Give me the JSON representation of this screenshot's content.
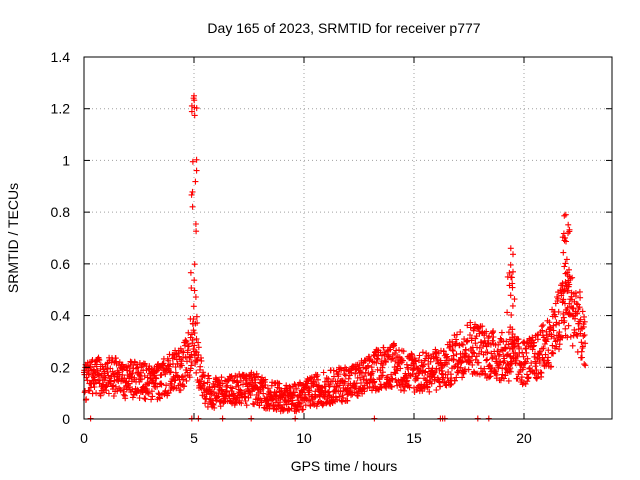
{
  "chart_data": {
    "type": "scatter",
    "title": "Day 165 of 2023, SRMTID for receiver p777",
    "xlabel": "GPS time / hours",
    "ylabel": "SRMTID / TECUs",
    "xlim": [
      0,
      24
    ],
    "ylim": [
      0,
      1.4
    ],
    "xticks": [
      0,
      5,
      10,
      15,
      20
    ],
    "yticks": [
      0,
      0.2,
      0.4,
      0.6,
      0.8,
      1,
      1.2,
      1.4
    ],
    "xtick_labels": [
      "0",
      "5",
      "10",
      "15",
      "20"
    ],
    "ytick_labels": [
      "0",
      "0.2",
      "0.4",
      "0.6",
      "0.8",
      "1",
      "1.2",
      "1.4"
    ],
    "grid": true,
    "marker": "+",
    "color": "#ff0000",
    "series": [
      {
        "name": "SRMTID",
        "description": "Smoothed profile of the dense point cloud (x hours, y TECU); individual points scatter around this profile",
        "x": [
          0,
          0.5,
          1,
          1.5,
          2,
          2.5,
          3,
          3.5,
          4,
          4.5,
          4.8,
          5.0,
          5.2,
          5.5,
          6,
          6.5,
          7,
          7.5,
          8,
          8.5,
          9,
          9.5,
          10,
          10.5,
          11,
          11.5,
          12,
          12.5,
          13,
          13.5,
          14,
          14.5,
          15,
          15.5,
          16,
          16.5,
          17,
          17.5,
          18,
          18.5,
          19,
          19.5,
          20,
          20.5,
          21,
          21.5,
          22,
          22.5,
          22.8
        ],
        "y": [
          0.14,
          0.16,
          0.17,
          0.16,
          0.15,
          0.15,
          0.14,
          0.15,
          0.18,
          0.2,
          0.25,
          0.35,
          0.2,
          0.11,
          0.1,
          0.11,
          0.11,
          0.12,
          0.11,
          0.09,
          0.08,
          0.08,
          0.09,
          0.11,
          0.12,
          0.13,
          0.14,
          0.15,
          0.17,
          0.2,
          0.21,
          0.19,
          0.18,
          0.18,
          0.19,
          0.2,
          0.25,
          0.28,
          0.27,
          0.25,
          0.24,
          0.23,
          0.22,
          0.23,
          0.28,
          0.36,
          0.45,
          0.38,
          0.26
        ]
      }
    ],
    "peaks": [
      {
        "x": 5.0,
        "y": 1.25
      },
      {
        "x": 19.4,
        "y": 0.66
      },
      {
        "x": 21.9,
        "y": 0.79
      }
    ],
    "near_zero_marks_x": [
      0.3,
      4.9,
      5.2,
      6.3,
      7.6,
      9.6,
      13.2,
      16.2,
      16.3,
      16.4,
      17.9,
      18.4
    ]
  }
}
